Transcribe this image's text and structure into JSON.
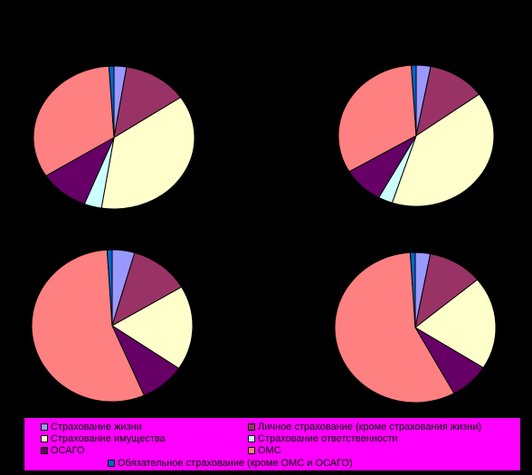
{
  "chart_data": [
    {
      "type": "pie",
      "categories": [
        "Страхование жизни",
        "Личное страхование (кроме страхования жизни)",
        "Страхование имущества",
        "Страхование ответственности",
        "ОСАГО",
        "ОМС",
        "Обязательное страхование (кроме ОМС и ОСАГО)"
      ],
      "values": [
        2.5,
        13,
        37,
        3.5,
        10,
        33,
        1
      ],
      "title": ""
    },
    {
      "type": "pie",
      "categories": [
        "Страхование жизни",
        "Личное страхование (кроме страхования жизни)",
        "Страхование имущества",
        "Страхование ответственности",
        "ОСАГО",
        "ОМС",
        "Обязательное страхование (кроме ОМС и ОСАГО)"
      ],
      "values": [
        3,
        12,
        40,
        3,
        8.5,
        32.5,
        1
      ],
      "title": ""
    },
    {
      "type": "pie",
      "categories": [
        "Страхование жизни",
        "Личное страхование (кроме страхования жизни)",
        "Страхование имущества",
        "Страхование ответственности",
        "ОСАГО",
        "ОМС",
        "Обязательное страхование (кроме ОМС и ОСАГО)"
      ],
      "values": [
        4.5,
        12,
        18,
        0,
        9,
        55.5,
        1
      ],
      "title": ""
    },
    {
      "type": "pie",
      "categories": [
        "Страхование жизни",
        "Личное страхование (кроме страхования жизни)",
        "Страхование имущества",
        "Страхование ответственности",
        "ОСАГО",
        "ОМС",
        "Обязательное страхование (кроме ОМС и ОСАГО)"
      ],
      "values": [
        3,
        11,
        20,
        0,
        8,
        57,
        1
      ],
      "title": ""
    }
  ],
  "legend": {
    "items": [
      {
        "label": "Страхование жизни",
        "color": "#9999ff"
      },
      {
        "label": "Личное страхование (кроме страхования жизни)",
        "color": "#993366"
      },
      {
        "label": "Страхование имущества",
        "color": "#ffffcc"
      },
      {
        "label": "Страхование ответственности",
        "color": "#ccffff"
      },
      {
        "label": "ОСАГО",
        "color": "#660066"
      },
      {
        "label": "ОМС",
        "color": "#ff8080"
      },
      {
        "label": "Обязательное страхование (кроме ОМС и ОСАГО)",
        "color": "#0066cc"
      }
    ]
  }
}
